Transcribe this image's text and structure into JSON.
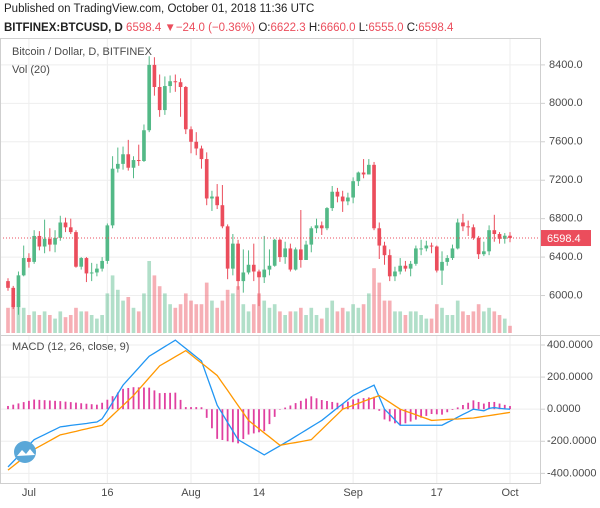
{
  "header": {
    "published": "Published on TradingView.com, October 01, 2018 11:36 UTC",
    "symbol": "BITFINEX:BTCUSD, D",
    "last": "6598.4",
    "arrow": "▼",
    "change": "−24.0 (−0.36%)",
    "ohlc": [
      {
        "key": "O:",
        "value": "6622.3"
      },
      {
        "key": "H:",
        "value": "6660.0"
      },
      {
        "key": "L:",
        "value": "6555.0"
      },
      {
        "key": "C:",
        "value": "6598.4"
      }
    ]
  },
  "chart_data": [
    {
      "type": "candlestick",
      "title": "Bitcoin / Dollar, D, BITFINEX",
      "volume_label": "Vol (20)",
      "up_color": "#53b987",
      "down_color": "#eb4d5c",
      "grid": true,
      "categories": [
        null,
        null,
        null,
        null,
        "Jul",
        null,
        null,
        null,
        null,
        null,
        null,
        null,
        null,
        null,
        null,
        null,
        null,
        null,
        null,
        "16",
        null,
        null,
        null,
        null,
        null,
        null,
        null,
        null,
        null,
        null,
        null,
        null,
        null,
        null,
        null,
        "Aug",
        null,
        null,
        null,
        null,
        null,
        null,
        null,
        null,
        null,
        null,
        null,
        null,
        "14",
        null,
        null,
        null,
        null,
        null,
        null,
        null,
        null,
        null,
        null,
        null,
        null,
        null,
        null,
        null,
        null,
        null,
        "Sep",
        null,
        null,
        null,
        null,
        null,
        null,
        null,
        null,
        null,
        null,
        null,
        null,
        null,
        null,
        null,
        "17",
        null,
        null,
        null,
        null,
        null,
        null,
        null,
        null,
        null,
        null,
        null,
        null,
        null,
        "Oct"
      ],
      "open": [
        6150,
        6080,
        5880,
        6210,
        6390,
        6350,
        6620,
        6510,
        6590,
        6530,
        6600,
        6760,
        6710,
        6660,
        6300,
        6390,
        6230,
        6240,
        6280,
        6360,
        6730,
        7320,
        7370,
        7470,
        7330,
        7410,
        7400,
        7720,
        8400,
        8170,
        7930,
        8180,
        8230,
        8220,
        8170,
        7730,
        7600,
        7530,
        7420,
        7010,
        7030,
        6940,
        6720,
        6280,
        6540,
        6150,
        6240,
        6320,
        6250,
        6190,
        6270,
        6310,
        6580,
        6400,
        6490,
        6270,
        6480,
        6370,
        6530,
        6700,
        6730,
        6700,
        6910,
        7080,
        7030,
        6980,
        7020,
        7190,
        7280,
        7260,
        7360,
        6700,
        6520,
        6420,
        6200,
        6250,
        6310,
        6280,
        6330,
        6490,
        6490,
        6520,
        6510,
        6260,
        6350,
        6390,
        6490,
        6760,
        6720,
        6710,
        6600,
        6430,
        6460,
        6680,
        6640,
        6590,
        6622.3
      ],
      "high": [
        6180,
        6100,
        6250,
        6520,
        6440,
        6680,
        6670,
        6790,
        6700,
        6680,
        6830,
        6810,
        6800,
        6680,
        6400,
        6400,
        6340,
        6330,
        6400,
        6750,
        7450,
        7540,
        7550,
        7620,
        7450,
        7570,
        7780,
        8490,
        8480,
        8300,
        8280,
        8290,
        8300,
        8260,
        8180,
        7760,
        7700,
        7560,
        7490,
        7090,
        7160,
        7150,
        6740,
        6640,
        6580,
        6480,
        6470,
        6540,
        6270,
        6620,
        6480,
        6590,
        6590,
        6560,
        6540,
        6500,
        6890,
        6570,
        6720,
        6800,
        6770,
        6920,
        7140,
        7120,
        7090,
        7070,
        7230,
        7290,
        7420,
        7420,
        7390,
        6760,
        6560,
        6480,
        6300,
        6390,
        6360,
        6360,
        6520,
        6580,
        6570,
        6550,
        6520,
        6460,
        6420,
        6530,
        6800,
        6850,
        6780,
        6740,
        6620,
        6560,
        6730,
        6840,
        6660,
        6650,
        6660
      ],
      "low": [
        6050,
        5860,
        5800,
        6200,
        6290,
        6330,
        6470,
        6440,
        6460,
        6450,
        6570,
        6660,
        6640,
        6290,
        6270,
        6140,
        6150,
        6200,
        6250,
        6330,
        6700,
        7280,
        7310,
        7300,
        7220,
        7350,
        7390,
        7700,
        8080,
        7860,
        7880,
        8110,
        8120,
        7860,
        7680,
        7480,
        7460,
        7320,
        6940,
        6880,
        6900,
        6700,
        6170,
        6210,
        6060,
        6030,
        6220,
        6150,
        5890,
        6130,
        6210,
        6300,
        6350,
        6330,
        6250,
        6260,
        6290,
        6370,
        6450,
        6650,
        6630,
        6680,
        6880,
        6970,
        6870,
        6940,
        6960,
        7140,
        7220,
        7260,
        6680,
        6380,
        6320,
        6150,
        6150,
        6220,
        6250,
        6200,
        6310,
        6420,
        6460,
        6440,
        6240,
        6110,
        6310,
        6370,
        6480,
        6670,
        6620,
        6580,
        6380,
        6410,
        6420,
        6560,
        6540,
        6540,
        6555
      ],
      "close": [
        6080,
        5880,
        6210,
        6390,
        6350,
        6620,
        6510,
        6590,
        6530,
        6600,
        6760,
        6710,
        6660,
        6300,
        6390,
        6230,
        6240,
        6280,
        6360,
        6730,
        7320,
        7370,
        7470,
        7330,
        7410,
        7400,
        7720,
        8400,
        8170,
        7930,
        8180,
        8230,
        8220,
        8170,
        7730,
        7600,
        7530,
        7420,
        7010,
        7030,
        6940,
        6720,
        6280,
        6540,
        6150,
        6240,
        6320,
        6250,
        6190,
        6270,
        6310,
        6580,
        6400,
        6490,
        6270,
        6480,
        6370,
        6530,
        6700,
        6730,
        6700,
        6910,
        7080,
        7030,
        6980,
        7020,
        7190,
        7280,
        7260,
        7360,
        6700,
        6520,
        6420,
        6200,
        6250,
        6310,
        6280,
        6330,
        6490,
        6490,
        6520,
        6510,
        6260,
        6350,
        6390,
        6490,
        6760,
        6720,
        6710,
        6600,
        6430,
        6460,
        6680,
        6640,
        6590,
        6622.3,
        6598.4
      ],
      "volume": [
        35,
        40,
        45,
        35,
        25,
        30,
        25,
        30,
        25,
        20,
        30,
        22,
        25,
        35,
        30,
        30,
        25,
        20,
        25,
        55,
        80,
        60,
        45,
        50,
        35,
        30,
        55,
        100,
        80,
        65,
        55,
        40,
        35,
        40,
        55,
        45,
        40,
        40,
        70,
        45,
        35,
        45,
        60,
        55,
        65,
        40,
        30,
        40,
        55,
        45,
        35,
        40,
        30,
        25,
        30,
        30,
        35,
        25,
        35,
        25,
        20,
        35,
        45,
        30,
        35,
        30,
        40,
        35,
        40,
        55,
        90,
        70,
        45,
        45,
        30,
        30,
        25,
        30,
        30,
        25,
        20,
        20,
        40,
        35,
        25,
        25,
        45,
        30,
        25,
        30,
        40,
        30,
        35,
        30,
        25,
        20,
        10
      ],
      "volume_lim": [
        0,
        100
      ],
      "ylim": [
        5610,
        8680
      ],
      "yticks": [
        {
          "value": 6000,
          "label": "6000.0"
        },
        {
          "value": 6400,
          "label": "6400.0"
        },
        {
          "value": 6800,
          "label": "6800.0"
        },
        {
          "value": 7200,
          "label": "7200.0"
        },
        {
          "value": 7600,
          "label": "7600.0"
        },
        {
          "value": 8000,
          "label": "8000.0"
        },
        {
          "value": 8400,
          "label": "8400.0"
        }
      ]
    },
    {
      "type": "macd",
      "title": "MACD (12, 26, close, 9)",
      "grid": true,
      "ylim": [
        -460,
        456
      ],
      "yticks": [
        {
          "value": 400,
          "label": "400.0000"
        },
        {
          "value": 200,
          "label": "200.0000"
        },
        {
          "value": 0,
          "label": "0.0000"
        },
        {
          "value": -200,
          "label": "-200.0000"
        },
        {
          "value": -400,
          "label": "-400.0000"
        }
      ],
      "series": [
        {
          "color": "#e040a0",
          "style": "histogram",
          "values": [
            20,
            28,
            36,
            44,
            52,
            60,
            58,
            56,
            54,
            52,
            50,
            47,
            44,
            41,
            37,
            34,
            31,
            28,
            40,
            59,
            81,
            104,
            127,
            132,
            137,
            136,
            135,
            134,
            117,
            100,
            101,
            102,
            103,
            58,
            13,
            13,
            13,
            12,
            -54,
            -119,
            -185,
            -192,
            -200,
            -206,
            -213,
            -186,
            -158,
            -151,
            -144,
            -137,
            -93,
            -48,
            -3,
            10,
            23,
            38,
            52,
            66,
            80,
            68,
            57,
            51,
            45,
            40,
            33,
            47,
            61,
            65,
            69,
            73,
            77,
            -10,
            -64,
            -76,
            -88,
            -100,
            -88,
            -77,
            -65,
            -53,
            -42,
            -30,
            -32,
            -34,
            -19,
            -5,
            11,
            26,
            40,
            55,
            45,
            35,
            45,
            45,
            35,
            27,
            20
          ]
        },
        {
          "color": "#2196f3",
          "style": "line",
          "values": [
            -360,
            -326,
            -292,
            -258,
            -224,
            -190,
            -174,
            -158,
            -142,
            -126,
            -110,
            -106,
            -101,
            -97,
            -93,
            -89,
            -84,
            -80,
            -60,
            -10,
            43,
            97,
            150,
            186,
            222,
            258,
            294,
            330,
            350,
            370,
            390,
            410,
            430,
            404,
            378,
            352,
            326,
            300,
            208,
            117,
            25,
            -29,
            -83,
            -136,
            -190,
            -209,
            -228,
            -247,
            -266,
            -285,
            -266,
            -247,
            -228,
            -209,
            -190,
            -170,
            -150,
            -130,
            -110,
            -90,
            -70,
            -44,
            -18,
            8,
            33,
            59,
            85,
            101,
            118,
            134,
            150,
            75,
            0,
            -33,
            -67,
            -100,
            -100,
            -100,
            -100,
            -100,
            -100,
            -100,
            -100,
            -100,
            -83,
            -67,
            -50,
            -33,
            -17,
            0,
            -5,
            -10,
            5,
            10,
            5,
            2,
            0
          ]
        },
        {
          "color": "#ff9800",
          "style": "line",
          "values": [
            -380,
            -354,
            -328,
            -302,
            -276,
            -250,
            -232,
            -214,
            -196,
            -178,
            -160,
            -153,
            -145,
            -138,
            -130,
            -123,
            -115,
            -108,
            -100,
            -69,
            -38,
            -7,
            23,
            54,
            85,
            122,
            159,
            196,
            233,
            270,
            289,
            308,
            327,
            346,
            365,
            339,
            313,
            288,
            262,
            236,
            210,
            163,
            117,
            70,
            23,
            -23,
            -70,
            -96,
            -122,
            -148,
            -173,
            -199,
            -225,
            -219,
            -213,
            -208,
            -202,
            -196,
            -190,
            -158,
            -127,
            -95,
            -63,
            -32,
            0,
            12,
            24,
            36,
            49,
            61,
            73,
            85,
            64,
            43,
            21,
            0,
            -12,
            -23,
            -35,
            -47,
            -58,
            -70,
            -68,
            -66,
            -64,
            -62,
            -61,
            -59,
            -57,
            -55,
            -50,
            -45,
            -40,
            -35,
            -30,
            -25,
            -20
          ]
        }
      ]
    }
  ]
}
